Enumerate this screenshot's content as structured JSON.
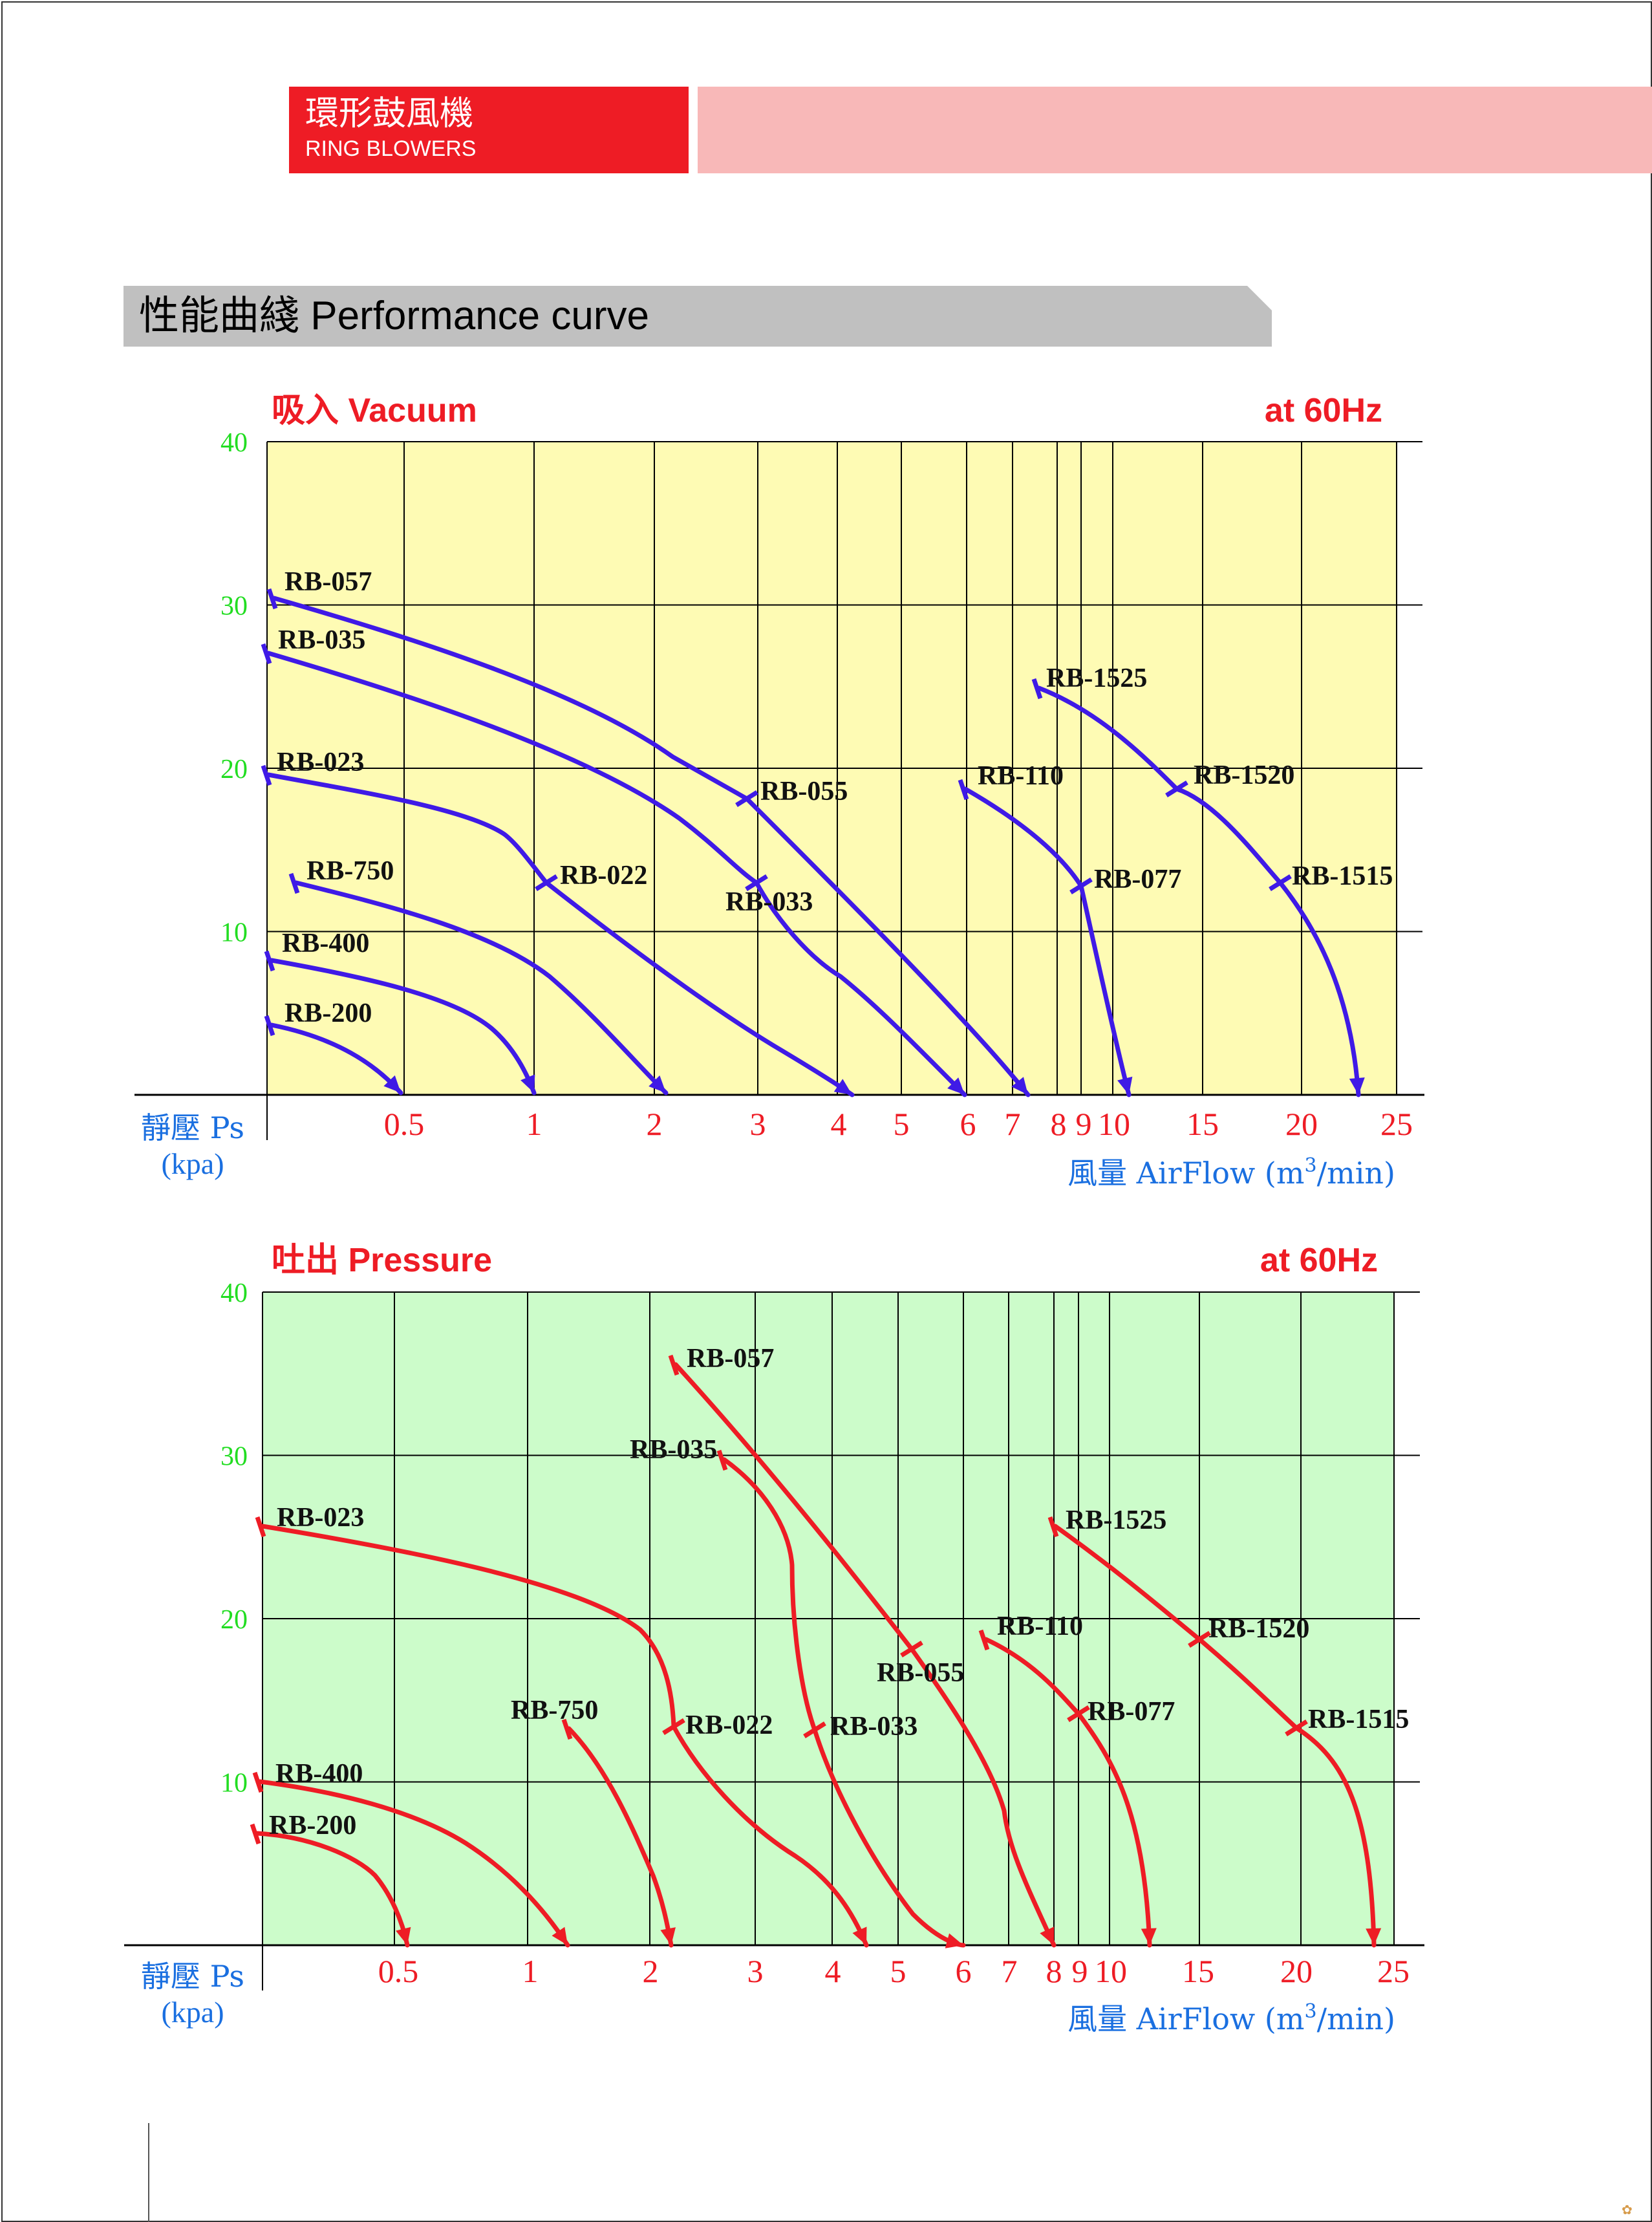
{
  "header": {
    "brand_cn": "環形鼓風機",
    "brand_en": "RING BLOWERS",
    "brand_color": "#ee1c25",
    "band_color": "#f8b8b8"
  },
  "section": {
    "title": "性能曲綫 Performance curve"
  },
  "footer": {
    "mark": "✿"
  },
  "colors": {
    "vacuum_bg": "#fefbb4",
    "pressure_bg": "#ccfcca",
    "vacuum_curve": "#3f1ae6",
    "pressure_curve": "#ee1c25",
    "title_red": "#ee1c25",
    "y_tick_green": "#22dd22",
    "axis_label_blue": "#1a6fe0",
    "x_tick_red": "#ee1c25"
  },
  "chart_data": [
    {
      "type": "line",
      "title": "吸入 Vacuum",
      "subtitle": "at 60Hz",
      "ylabel": "靜壓 Ps",
      "ylabel_unit": "(kpa)",
      "xlabel": "風量 AirFlow",
      "xlabel_unit_pre": "(m",
      "xlabel_unit_sup": "3",
      "xlabel_unit_post": "/min)",
      "x_ticks": [
        "0.5",
        "1",
        "2",
        "3",
        "4",
        "5",
        "6",
        "7",
        "8",
        "9",
        "10",
        "15",
        "20",
        "25"
      ],
      "y_ticks": [
        "40",
        "30",
        "20",
        "10"
      ],
      "ylim": [
        0,
        40
      ],
      "grid": true,
      "series": [
        {
          "name": "RB-200",
          "x": [
            0,
            0.5
          ],
          "y": [
            6,
            0
          ]
        },
        {
          "name": "RB-400",
          "x": [
            0,
            1
          ],
          "y": [
            10,
            0
          ]
        },
        {
          "name": "RB-750",
          "x": [
            0.1,
            2
          ],
          "y": [
            14.5,
            0
          ]
        },
        {
          "name": "RB-023",
          "x": [
            0,
            1,
            4
          ],
          "y": [
            20.5,
            14.5,
            0
          ]
        },
        {
          "name": "RB-035",
          "x": [
            0,
            3,
            6
          ],
          "y": [
            27.5,
            14.5,
            0
          ]
        },
        {
          "name": "RB-057",
          "x": [
            0,
            3,
            7
          ],
          "y": [
            31,
            19.5,
            0
          ]
        },
        {
          "name": "RB-110",
          "x": [
            6,
            9,
            11
          ],
          "y": [
            20,
            14.5,
            0
          ]
        },
        {
          "name": "RB-1525",
          "x": [
            7,
            14,
            19,
            23
          ],
          "y": [
            25.5,
            20,
            14.5,
            0
          ]
        }
      ],
      "annotations": [
        {
          "text": "RB-057",
          "x": 0,
          "y": 31
        },
        {
          "text": "RB-035",
          "x": 0,
          "y": 27.5
        },
        {
          "text": "RB-023",
          "x": 0,
          "y": 20.5
        },
        {
          "text": "RB-750",
          "x": 0.1,
          "y": 14.5
        },
        {
          "text": "RB-400",
          "x": 0,
          "y": 10
        },
        {
          "text": "RB-200",
          "x": 0,
          "y": 6
        },
        {
          "text": "RB-022",
          "x": 1,
          "y": 14.5
        },
        {
          "text": "RB-055",
          "x": 3,
          "y": 19.5
        },
        {
          "text": "RB-033",
          "x": 3,
          "y": 14.5
        },
        {
          "text": "RB-110",
          "x": 6,
          "y": 20
        },
        {
          "text": "RB-077",
          "x": 9,
          "y": 14.5
        },
        {
          "text": "RB-1525",
          "x": 7,
          "y": 25.5
        },
        {
          "text": "RB-1520",
          "x": 14,
          "y": 20
        },
        {
          "text": "RB-1515",
          "x": 19,
          "y": 14.5
        }
      ]
    },
    {
      "type": "line",
      "title": "吐出 Pressure",
      "subtitle": "at 60Hz",
      "ylabel": "靜壓 Ps",
      "ylabel_unit": "(kpa)",
      "xlabel": "風量 AirFlow",
      "xlabel_unit_pre": "(m",
      "xlabel_unit_sup": "3",
      "xlabel_unit_post": "/min)",
      "x_ticks": [
        "0.5",
        "1",
        "2",
        "3",
        "4",
        "5",
        "6",
        "7",
        "8",
        "9",
        "10",
        "15",
        "20",
        "25"
      ],
      "y_ticks": [
        "40",
        "30",
        "20",
        "10"
      ],
      "ylim": [
        0,
        40
      ],
      "grid": true,
      "series": [
        {
          "name": "RB-200",
          "x": [
            0,
            0.5
          ],
          "y": [
            9,
            0
          ]
        },
        {
          "name": "RB-400",
          "x": [
            0,
            1.2
          ],
          "y": [
            11.5,
            0
          ]
        },
        {
          "name": "RB-750",
          "x": [
            1.2,
            2.2
          ],
          "y": [
            15,
            0
          ]
        },
        {
          "name": "RB-023",
          "x": [
            0,
            2.2,
            4.5
          ],
          "y": [
            26.5,
            15,
            0
          ]
        },
        {
          "name": "RB-035",
          "x": [
            2.8,
            3.8,
            6
          ],
          "y": [
            30,
            15,
            0
          ]
        },
        {
          "name": "RB-057",
          "x": [
            2.2,
            5,
            8
          ],
          "y": [
            35.5,
            19.5,
            0
          ]
        },
        {
          "name": "RB-110",
          "x": [
            6.5,
            9,
            12
          ],
          "y": [
            20,
            15.5,
            0
          ]
        },
        {
          "name": "RB-1525",
          "x": [
            8,
            15,
            20,
            24
          ],
          "y": [
            26.5,
            20,
            15,
            0
          ]
        }
      ],
      "annotations": [
        {
          "text": "RB-057",
          "x": 2.2,
          "y": 35.5
        },
        {
          "text": "RB-035",
          "x": 2.8,
          "y": 30
        },
        {
          "text": "RB-023",
          "x": 0,
          "y": 26.5
        },
        {
          "text": "RB-750",
          "x": 1.2,
          "y": 15
        },
        {
          "text": "RB-400",
          "x": 0,
          "y": 11.5
        },
        {
          "text": "RB-200",
          "x": 0,
          "y": 9
        },
        {
          "text": "RB-022",
          "x": 2.2,
          "y": 15
        },
        {
          "text": "RB-055",
          "x": 5,
          "y": 19.5
        },
        {
          "text": "RB-033",
          "x": 3.8,
          "y": 15
        },
        {
          "text": "RB-110",
          "x": 6.5,
          "y": 20
        },
        {
          "text": "RB-077",
          "x": 9,
          "y": 15.5
        },
        {
          "text": "RB-1525",
          "x": 8,
          "y": 26.5
        },
        {
          "text": "RB-1520",
          "x": 15,
          "y": 20
        },
        {
          "text": "RB-1515",
          "x": 20,
          "y": 15
        }
      ]
    }
  ]
}
